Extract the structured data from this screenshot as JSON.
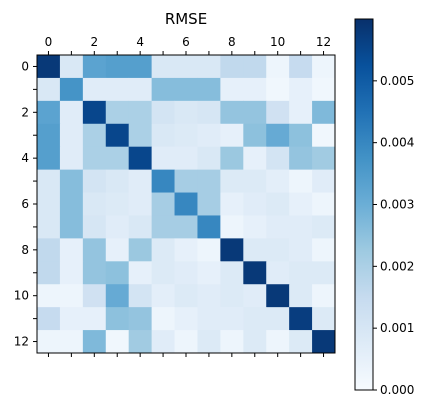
{
  "chart_data": {
    "type": "heatmap",
    "title": "RMSE",
    "xlabel": "",
    "ylabel": "",
    "x_tick_labels": [
      "0",
      "2",
      "4",
      "6",
      "8",
      "10",
      "12"
    ],
    "y_tick_labels": [
      "0",
      "2",
      "4",
      "6",
      "8",
      "10",
      "12"
    ],
    "colormap": "Blues",
    "vmin": 0.0,
    "vmax": 0.006,
    "colorbar_ticks": [
      "0.000",
      "0.001",
      "0.002",
      "0.003",
      "0.004",
      "0.005"
    ],
    "colorbar_tick_values": [
      0.0,
      0.001,
      0.002,
      0.003,
      0.004,
      0.005
    ],
    "matrix": [
      [
        0.0058,
        0.0009,
        0.0033,
        0.0034,
        0.0034,
        0.0009,
        0.0009,
        0.0009,
        0.0016,
        0.0016,
        0.0003,
        0.0015,
        0.0003
      ],
      [
        0.0009,
        0.0037,
        0.0007,
        0.0007,
        0.0007,
        0.0026,
        0.0026,
        0.0026,
        0.0005,
        0.0005,
        0.0002,
        0.0005,
        0.0002
      ],
      [
        0.0033,
        0.0007,
        0.0055,
        0.002,
        0.002,
        0.0011,
        0.0009,
        0.001,
        0.0024,
        0.0024,
        0.0012,
        0.0005,
        0.0027
      ],
      [
        0.0034,
        0.0007,
        0.002,
        0.0055,
        0.002,
        0.0009,
        0.0008,
        0.0007,
        0.0005,
        0.0025,
        0.0031,
        0.0025,
        0.0002
      ],
      [
        0.0034,
        0.0007,
        0.002,
        0.002,
        0.0055,
        0.0007,
        0.0007,
        0.0009,
        0.0023,
        0.0005,
        0.0011,
        0.0024,
        0.0022
      ],
      [
        0.0009,
        0.0026,
        0.0011,
        0.0009,
        0.0007,
        0.004,
        0.0021,
        0.0021,
        0.0008,
        0.0008,
        0.0006,
        0.0003,
        0.0007
      ],
      [
        0.0009,
        0.0026,
        0.0009,
        0.0008,
        0.0007,
        0.0021,
        0.004,
        0.0021,
        0.0005,
        0.0007,
        0.0008,
        0.0005,
        0.0003
      ],
      [
        0.0009,
        0.0026,
        0.001,
        0.0007,
        0.0009,
        0.0021,
        0.0021,
        0.004,
        0.0003,
        0.0005,
        0.0007,
        0.0007,
        0.0008
      ],
      [
        0.0016,
        0.0005,
        0.0024,
        0.0005,
        0.0023,
        0.0008,
        0.0005,
        0.0003,
        0.0058,
        0.0008,
        0.0008,
        0.0007,
        0.0003
      ],
      [
        0.0016,
        0.0005,
        0.0024,
        0.0025,
        0.0005,
        0.0008,
        0.0007,
        0.0005,
        0.0008,
        0.0058,
        0.0007,
        0.0008,
        0.0008
      ],
      [
        0.0003,
        0.0003,
        0.0012,
        0.0031,
        0.0011,
        0.0006,
        0.0008,
        0.0007,
        0.0008,
        0.0007,
        0.0058,
        0.0008,
        0.0003
      ],
      [
        0.0015,
        0.0005,
        0.0005,
        0.0025,
        0.0024,
        0.0003,
        0.0005,
        0.0007,
        0.0007,
        0.0008,
        0.0008,
        0.0057,
        0.0008
      ],
      [
        0.0003,
        0.0003,
        0.0027,
        0.0002,
        0.0022,
        0.0007,
        0.0003,
        0.0008,
        0.0003,
        0.0008,
        0.0003,
        0.0008,
        0.0058
      ]
    ]
  }
}
